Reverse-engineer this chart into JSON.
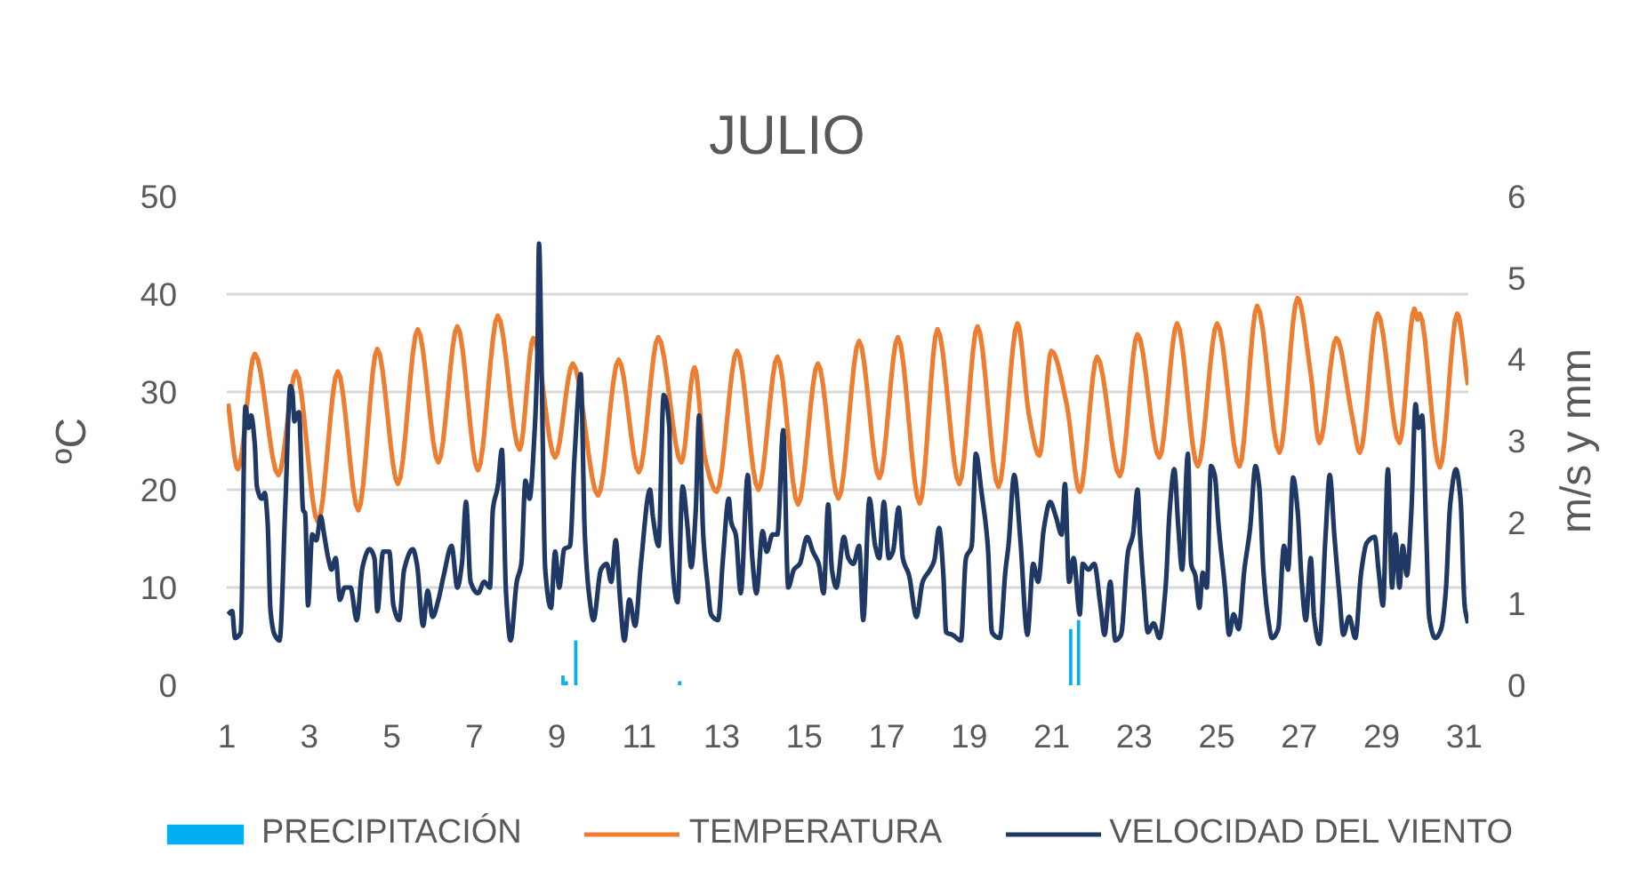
{
  "chart_data": {
    "type": "line",
    "title": "JULIO",
    "ylabel": "ºC",
    "y2label": "m/s y mm",
    "xlim": [
      1,
      31.1
    ],
    "xticks": [
      1,
      3,
      5,
      7,
      9,
      11,
      13,
      15,
      17,
      19,
      21,
      23,
      25,
      27,
      29,
      31
    ],
    "ylim": [
      0,
      50
    ],
    "yticks": [
      0,
      10,
      20,
      30,
      40,
      50
    ],
    "y2lim": [
      0,
      6
    ],
    "y2ticks": [
      0,
      1,
      2,
      3,
      4,
      5,
      6
    ],
    "grid": "y",
    "legend": "bottom",
    "series": [
      {
        "name": "PRECIPITACIÓN",
        "type": "bar",
        "axis": "y2",
        "color": "#00b0f0",
        "x": [
          9.15,
          9.23,
          9.46,
          11.98,
          21.46,
          21.65
        ],
        "values": [
          0.12,
          0.05,
          0.55,
          0.05,
          0.69,
          0.8
        ]
      },
      {
        "name": "TEMPERATURA",
        "color": "#ed7d31",
        "x": [
          1.03,
          1.27,
          1.68,
          2.25,
          2.68,
          3.21,
          3.69,
          4.19,
          4.65,
          5.15,
          5.63,
          6.13,
          6.59,
          7.09,
          7.57,
          8.1,
          8.43,
          8.96,
          9.39,
          10.0,
          10.5,
          10.99,
          11.46,
          12.02,
          12.34,
          12.59,
          12.88,
          13.37,
          13.89,
          14.35,
          14.85,
          15.33,
          15.83,
          16.33,
          16.82,
          17.27,
          17.8,
          18.23,
          18.76,
          19.2,
          19.71,
          20.17,
          20.45,
          20.7,
          20.99,
          21.36,
          21.68,
          22.1,
          22.65,
          23.08,
          23.61,
          24.04,
          24.54,
          25.01,
          25.55,
          25.98,
          26.52,
          26.96,
          27.28,
          27.49,
          27.9,
          28.29,
          28.47,
          28.9,
          29.43,
          29.79,
          29.87,
          29.92,
          30.41,
          30.83,
          31.09
        ],
        "values": [
          28.8,
          22.1,
          33.9,
          21.5,
          32.1,
          16.7,
          32.1,
          17.9,
          34.4,
          20.6,
          36.4,
          22.8,
          36.7,
          22.0,
          37.8,
          24.1,
          35.5,
          23.3,
          32.9,
          19.4,
          33.3,
          21.8,
          35.6,
          22.8,
          32.5,
          23.3,
          19.8,
          34.2,
          20.0,
          33.6,
          18.5,
          32.9,
          19.1,
          35.2,
          21.2,
          35.6,
          18.6,
          36.4,
          20.6,
          36.7,
          20.3,
          37.0,
          27.6,
          23.5,
          34.2,
          28.8,
          19.8,
          33.6,
          21.4,
          35.9,
          23.3,
          37.0,
          22.4,
          37.0,
          22.4,
          38.8,
          23.8,
          39.6,
          31.8,
          24.8,
          35.5,
          27.3,
          23.8,
          38.0,
          24.8,
          38.5,
          37.4,
          38.0,
          22.3,
          38.0,
          30.7
        ]
      },
      {
        "name": "VELOCIDAD DEL VIENTO",
        "axis": "y2",
        "color": "#1f3864",
        "x": [
          1.03,
          1.13,
          1.2,
          1.34,
          1.45,
          1.53,
          1.59,
          1.68,
          1.73,
          1.85,
          1.92,
          1.99,
          2.06,
          2.16,
          2.28,
          2.42,
          2.54,
          2.59,
          2.64,
          2.68,
          2.75,
          2.85,
          2.9,
          2.97,
          3.07,
          3.17,
          3.28,
          3.36,
          3.46,
          3.54,
          3.64,
          3.74,
          3.86,
          4.0,
          4.15,
          4.29,
          4.46,
          4.58,
          4.65,
          4.79,
          4.94,
          5.04,
          5.18,
          5.3,
          5.51,
          5.61,
          5.76,
          5.87,
          5.99,
          6.13,
          6.26,
          6.45,
          6.59,
          6.7,
          6.8,
          6.91,
          7.09,
          7.24,
          7.38,
          7.45,
          7.57,
          7.67,
          7.77,
          7.88,
          8.03,
          8.14,
          8.24,
          8.34,
          8.46,
          8.53,
          8.57,
          8.63,
          8.72,
          8.86,
          8.96,
          9.06,
          9.18,
          9.32,
          9.43,
          9.58,
          9.68,
          9.78,
          9.89,
          10.07,
          10.21,
          10.32,
          10.43,
          10.54,
          10.64,
          10.76,
          10.9,
          11.04,
          11.26,
          11.33,
          11.47,
          11.59,
          11.73,
          11.76,
          11.93,
          12.05,
          12.16,
          12.26,
          12.37,
          12.45,
          12.55,
          12.65,
          12.74,
          12.91,
          13.03,
          13.17,
          13.23,
          13.34,
          13.46,
          13.63,
          13.74,
          13.84,
          13.99,
          14.09,
          14.23,
          14.35,
          14.49,
          14.61,
          14.75,
          14.89,
          15.07,
          15.21,
          15.35,
          15.47,
          15.58,
          15.67,
          15.78,
          15.96,
          16.07,
          16.19,
          16.33,
          16.43,
          16.58,
          16.72,
          16.82,
          16.93,
          17.05,
          17.15,
          17.29,
          17.39,
          17.54,
          17.72,
          17.87,
          18.05,
          18.15,
          18.27,
          18.37,
          18.44,
          18.59,
          18.8,
          18.92,
          19.06,
          19.16,
          19.3,
          19.45,
          19.55,
          19.74,
          19.88,
          19.95,
          20.09,
          20.24,
          20.41,
          20.55,
          20.67,
          20.81,
          20.96,
          21.1,
          21.24,
          21.32,
          21.42,
          21.53,
          21.68,
          21.75,
          21.89,
          22.03,
          22.18,
          22.28,
          22.42,
          22.54,
          22.68,
          22.85,
          22.97,
          23.08,
          23.14,
          23.23,
          23.33,
          23.47,
          23.61,
          23.76,
          23.86,
          23.97,
          24.07,
          24.16,
          24.3,
          24.38,
          24.48,
          24.58,
          24.66,
          24.76,
          24.86,
          24.95,
          25.05,
          25.2,
          25.3,
          25.41,
          25.53,
          25.67,
          25.81,
          25.94,
          26.03,
          26.13,
          26.24,
          26.34,
          26.49,
          26.63,
          26.73,
          26.85,
          26.96,
          27.06,
          27.16,
          27.28,
          27.36,
          27.49,
          27.64,
          27.74,
          27.85,
          27.97,
          28.07,
          28.21,
          28.36,
          28.5,
          28.64,
          28.83,
          28.93,
          29.03,
          29.15,
          29.25,
          29.33,
          29.43,
          29.51,
          29.61,
          29.72,
          29.82,
          29.89,
          29.98,
          30.08,
          30.15,
          30.3,
          30.44,
          30.55,
          30.66,
          30.8,
          30.91,
          31.01,
          31.09
        ],
        "values": [
          0.87,
          0.91,
          0.58,
          0.65,
          3.42,
          3.16,
          3.31,
          2.95,
          2.44,
          2.29,
          2.36,
          2.0,
          0.91,
          0.62,
          0.55,
          2.22,
          3.67,
          3.6,
          3.24,
          3.31,
          3.35,
          2.15,
          2.11,
          0.98,
          1.85,
          1.78,
          2.07,
          1.85,
          1.56,
          1.42,
          1.56,
          1.05,
          1.2,
          1.2,
          0.8,
          1.45,
          1.67,
          1.56,
          0.91,
          1.64,
          1.64,
          0.98,
          0.8,
          1.42,
          1.67,
          1.49,
          0.73,
          1.16,
          0.84,
          1.05,
          1.35,
          1.71,
          1.2,
          1.49,
          2.25,
          1.27,
          1.13,
          1.27,
          1.2,
          2.15,
          2.44,
          2.89,
          1.13,
          0.55,
          1.27,
          1.49,
          2.51,
          2.29,
          3.09,
          4.04,
          5.42,
          3.96,
          1.42,
          0.95,
          1.64,
          1.2,
          1.67,
          1.71,
          2.8,
          3.82,
          1.85,
          1.13,
          0.8,
          1.42,
          1.49,
          1.27,
          1.78,
          1.02,
          0.55,
          1.05,
          0.73,
          1.49,
          2.4,
          2.07,
          1.71,
          3.56,
          3.16,
          1.93,
          1.02,
          2.44,
          2.0,
          1.45,
          2.15,
          3.31,
          1.85,
          1.27,
          0.87,
          0.8,
          1.56,
          2.29,
          2.0,
          1.85,
          1.13,
          2.58,
          1.56,
          1.13,
          1.89,
          1.64,
          1.85,
          1.85,
          3.13,
          1.2,
          1.42,
          1.49,
          1.82,
          1.64,
          1.49,
          1.13,
          2.22,
          1.42,
          1.2,
          1.82,
          1.56,
          1.49,
          1.71,
          0.8,
          2.29,
          1.71,
          1.56,
          2.25,
          1.56,
          1.64,
          2.18,
          1.56,
          1.35,
          0.84,
          1.27,
          1.42,
          1.53,
          1.93,
          1.38,
          0.65,
          0.62,
          0.55,
          1.56,
          1.71,
          2.84,
          2.36,
          1.71,
          0.65,
          0.58,
          1.42,
          1.71,
          2.58,
          1.78,
          0.62,
          1.49,
          1.27,
          1.93,
          2.25,
          2.07,
          1.85,
          2.47,
          1.27,
          1.56,
          0.87,
          1.49,
          1.42,
          1.49,
          0.98,
          0.62,
          1.27,
          0.55,
          0.62,
          1.64,
          1.85,
          2.4,
          1.85,
          1.2,
          0.65,
          0.76,
          0.58,
          1.2,
          2.15,
          2.65,
          1.93,
          1.42,
          2.84,
          1.49,
          1.35,
          0.95,
          1.38,
          1.2,
          2.69,
          2.58,
          1.93,
          1.2,
          0.62,
          0.87,
          0.69,
          1.42,
          1.93,
          2.69,
          2.44,
          1.42,
          0.84,
          0.58,
          0.69,
          1.71,
          1.42,
          2.55,
          2.15,
          1.27,
          0.8,
          1.56,
          0.84,
          0.51,
          1.85,
          2.58,
          1.85,
          1.13,
          0.62,
          0.84,
          0.58,
          1.38,
          1.75,
          1.82,
          1.38,
          0.98,
          2.65,
          1.2,
          1.85,
          1.2,
          1.71,
          1.35,
          2.15,
          3.45,
          3.16,
          3.31,
          1.85,
          0.84,
          0.58,
          0.69,
          1.13,
          2.22,
          2.65,
          2.29,
          0.98,
          0.76
        ]
      }
    ]
  }
}
